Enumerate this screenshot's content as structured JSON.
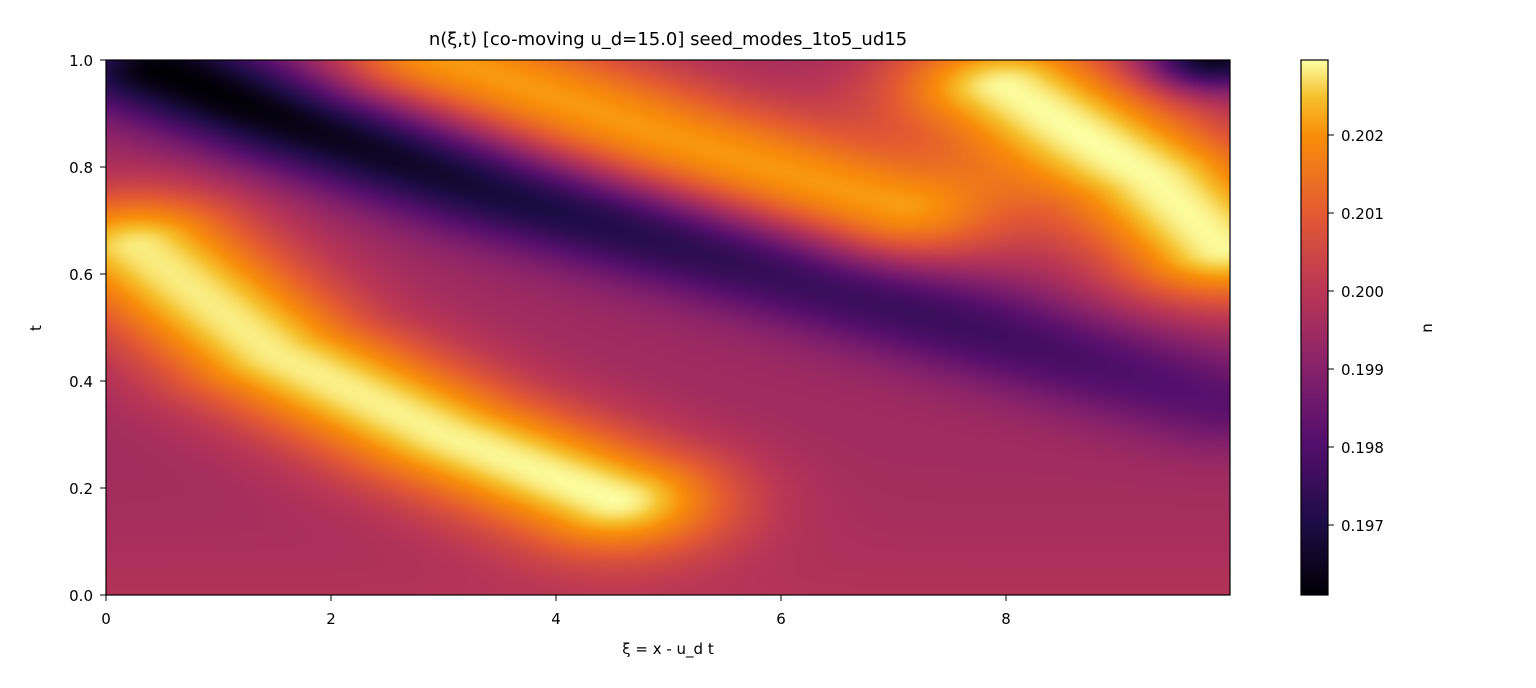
{
  "chart_data": {
    "type": "heatmap",
    "title": "n(ξ,t)  [co-moving u_d=15.0]  seed_modes_1to5_ud15",
    "xlabel": "ξ = x - u_d t",
    "ylabel": "t",
    "xlim": [
      0,
      9.98
    ],
    "ylim": [
      0,
      1.0
    ],
    "xticks": [
      "0",
      "2",
      "4",
      "6",
      "8"
    ],
    "yticks": [
      "0.0",
      "0.2",
      "0.4",
      "0.6",
      "0.8",
      "1.0"
    ],
    "colorbar": {
      "label": "n",
      "range": [
        0.19661,
        0.20294
      ],
      "ticks": [
        "0.197",
        "0.198",
        "0.199",
        "0.200",
        "0.201",
        "0.202"
      ],
      "colormap": "inferno"
    },
    "field": {
      "description_of_values": "approximate density n in range 0.1966–0.2029",
      "baseline": 0.1997,
      "features": [
        {
          "type": "bright_band",
          "xi_at_t": [
            [
              0.3,
              0.65
            ],
            [
              1.5,
              0.45
            ],
            [
              3.0,
              0.3
            ],
            [
              4.5,
              0.18
            ]
          ],
          "peak": 0.2028
        },
        {
          "type": "bright_band",
          "xi_at_t": [
            [
              3.0,
              1.0
            ],
            [
              5.0,
              0.85
            ],
            [
              7.0,
              0.72
            ]
          ],
          "peak": 0.2022
        },
        {
          "type": "bright_band",
          "xi_at_t": [
            [
              8.0,
              0.95
            ],
            [
              9.3,
              0.78
            ],
            [
              9.9,
              0.65
            ]
          ],
          "peak": 0.2029
        },
        {
          "type": "dark_band",
          "xi_at_t": [
            [
              0.5,
              0.98
            ],
            [
              1.7,
              0.88
            ],
            [
              3.5,
              0.75
            ],
            [
              6.0,
              0.6
            ],
            [
              9.9,
              0.35
            ]
          ],
          "trough": 0.1966
        },
        {
          "type": "dark_spot",
          "xi_at_t": [
            [
              9.8,
              1.0
            ]
          ],
          "trough": 0.1968
        }
      ]
    }
  }
}
